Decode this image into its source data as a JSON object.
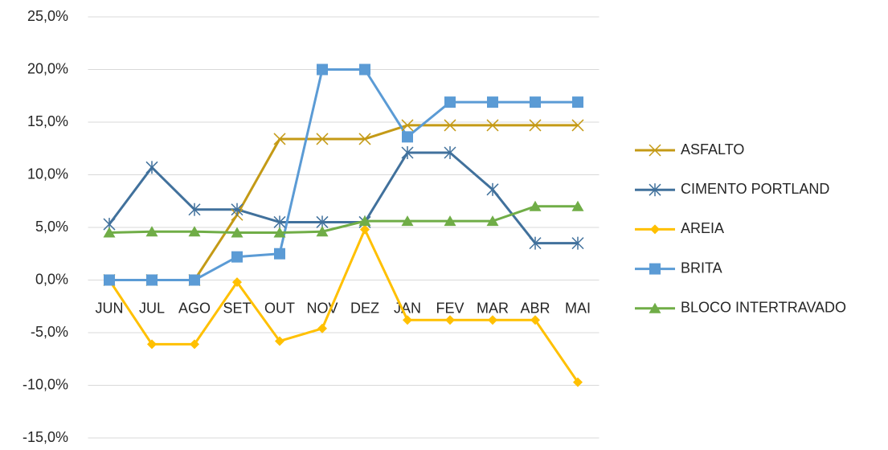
{
  "chart_data": {
    "type": "line",
    "categories": [
      "JUN",
      "JUL",
      "AGO",
      "SET",
      "OUT",
      "NOV",
      "DEZ",
      "JAN",
      "FEV",
      "MAR",
      "ABR",
      "MAI"
    ],
    "ylim": [
      -15,
      25
    ],
    "yticks": [
      {
        "value": -15,
        "label": "-15,0%"
      },
      {
        "value": -10,
        "label": "-10,0%"
      },
      {
        "value": -5,
        "label": "-5,0%"
      },
      {
        "value": 0,
        "label": "0,0%"
      },
      {
        "value": 5,
        "label": "5,0%"
      },
      {
        "value": 10,
        "label": "10,0%"
      },
      {
        "value": 15,
        "label": "15,0%"
      },
      {
        "value": 20,
        "label": "20,0%"
      },
      {
        "value": 25,
        "label": "25,0%"
      }
    ],
    "grid": true,
    "legend": "right",
    "series": [
      {
        "name": "ASFALTO",
        "color": "#C49A16",
        "marker": "x",
        "values": [
          0,
          0,
          0,
          6.2,
          13.4,
          13.4,
          13.4,
          14.7,
          14.7,
          14.7,
          14.7,
          14.7
        ]
      },
      {
        "name": "CIMENTO PORTLAND",
        "color": "#41719C",
        "marker": "asterisk",
        "values": [
          5.3,
          10.7,
          6.7,
          6.7,
          5.5,
          5.5,
          5.5,
          12.1,
          12.1,
          8.6,
          3.5,
          3.5
        ]
      },
      {
        "name": "AREIA",
        "color": "#FFC000",
        "marker": "diamond",
        "values": [
          0,
          -6.1,
          -6.1,
          -0.2,
          -5.8,
          -4.6,
          4.8,
          -3.8,
          -3.8,
          -3.8,
          -3.8,
          -9.7
        ]
      },
      {
        "name": "BRITA",
        "color": "#5B9BD5",
        "marker": "square",
        "values": [
          0,
          0,
          0,
          2.2,
          2.5,
          20,
          20,
          13.6,
          16.9,
          16.9,
          16.9,
          16.9
        ]
      },
      {
        "name": "BLOCO INTERTRAVADO",
        "color": "#70AD47",
        "marker": "triangle",
        "values": [
          4.5,
          4.6,
          4.6,
          4.5,
          4.5,
          4.6,
          5.6,
          5.6,
          5.6,
          5.6,
          7.0,
          7.0
        ]
      }
    ]
  }
}
